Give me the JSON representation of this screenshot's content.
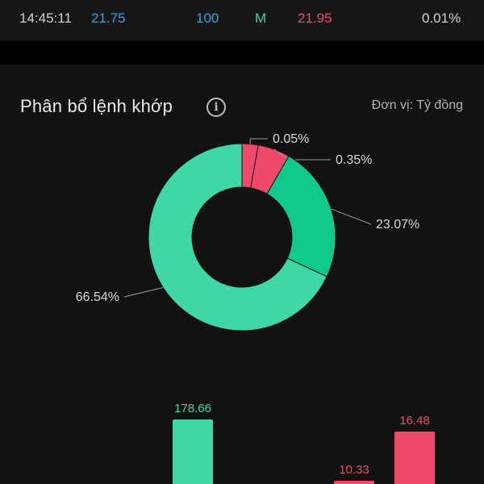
{
  "trade": {
    "time": "14:45:11",
    "price": "21.75",
    "volume": "100",
    "side": "M",
    "match_price": "21.95",
    "change": "0.01%"
  },
  "panel": {
    "title": "Phân bổ lệnh khớp",
    "unit": "Đơn vị: Tỷ đồng"
  },
  "colors": {
    "buy_large": "#3fd6a8",
    "buy_medium": "#11c98c",
    "sell_small": "#f0486a",
    "sell_medium": "#f0486a",
    "background": "#121212"
  },
  "chart_data": [
    {
      "type": "pie",
      "subtype": "donut",
      "slices": [
        {
          "label": "0.05%",
          "value": 0.05,
          "color": "#f0486a"
        },
        {
          "label": "0.35%",
          "value": 0.35,
          "color": "#f0486a"
        },
        {
          "label": "23.07%",
          "value": 23.07,
          "color": "#11c98c"
        },
        {
          "label": "66.54%",
          "value": 66.54,
          "color": "#3fd6a8"
        }
      ]
    },
    {
      "type": "bar",
      "values": [
        178.66,
        10.33,
        16.48
      ],
      "value_labels": [
        "178.66",
        "10.33",
        "16.48"
      ],
      "colors": [
        "#3fd6a8",
        "#f0486a",
        "#f0486a"
      ]
    }
  ]
}
